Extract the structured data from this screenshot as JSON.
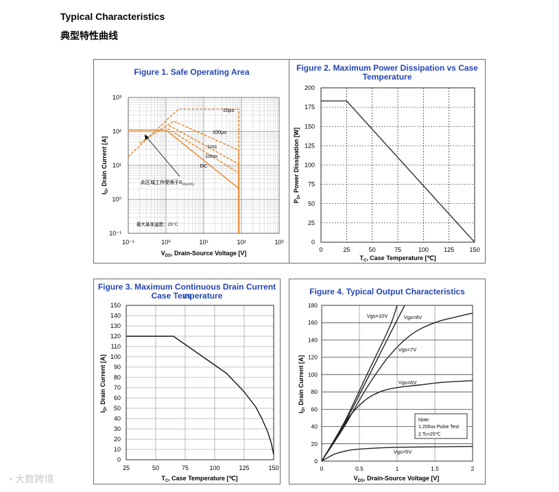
{
  "page": {
    "heading_en": "Typical Characteristics",
    "heading_cn": "典型特性曲线",
    "watermark": "大数跨境"
  },
  "chart_data": [
    {
      "type": "line",
      "title": "Figure 1. Safe Operating Area",
      "xlabel": "VDS, Drain-Source Voltage [V]",
      "ylabel": "ID, Drain Current [A]",
      "xscale": "log",
      "yscale": "log",
      "xlim": [
        0.1,
        1000
      ],
      "ylim": [
        0.1,
        1000
      ],
      "xticks": [
        "10⁻¹",
        "10⁰",
        "10¹",
        "10²",
        "10³"
      ],
      "yticks": [
        "10⁻¹",
        "10⁰",
        "10¹",
        "10²",
        "10³"
      ],
      "series": [
        {
          "name": "10µs",
          "style": "dashed",
          "x": [
            0.1,
            2.1,
            85,
            85
          ],
          "y": [
            18,
            450,
            450,
            0.1
          ]
        },
        {
          "name": "100µs",
          "style": "dashed",
          "x": [
            0.2,
            1.6,
            85,
            85
          ],
          "y": [
            45,
            200,
            28,
            0.1
          ]
        },
        {
          "name": "1ms",
          "style": "dashed",
          "x": [
            1.2,
            85,
            85
          ],
          "y": [
            150,
            11,
            0.1
          ]
        },
        {
          "name": "10ms",
          "style": "dashed",
          "x": [
            1.1,
            85,
            85
          ],
          "y": [
            120,
            6,
            0.1
          ]
        },
        {
          "name": "DC",
          "style": "solid",
          "x": [
            0.1,
            1.0,
            85,
            85
          ],
          "y": [
            110,
            110,
            2.1,
            0.1
          ]
        }
      ],
      "annotations": {
        "rds_note": "此区域工作受限于R",
        "rds_sub": "DS(ON)",
        "max_temp": "最大基准温度：25°C"
      }
    },
    {
      "type": "line",
      "title_lines": [
        "Figure 2. Maximum Power Dissipation vs Case",
        "Temperature"
      ],
      "xlabel": "TC, Case Temperature [℃]",
      "ylabel": "PD, Power Dissipation [W]",
      "xlim": [
        0,
        150
      ],
      "ylim": [
        0,
        200
      ],
      "xticks": [
        0,
        25,
        50,
        75,
        100,
        125,
        150
      ],
      "yticks": [
        0,
        25,
        50,
        75,
        100,
        125,
        150,
        175,
        200
      ],
      "series": [
        {
          "name": "PD",
          "x": [
            0,
            25,
            150
          ],
          "y": [
            183,
            183,
            0
          ]
        }
      ]
    },
    {
      "type": "line",
      "title_lines": [
        "Figure 3. Maximum Continuous Drain Current vs",
        "Case Temperature"
      ],
      "xlabel": "TC, Case Temperature [℃]",
      "ylabel": "ID, Drain Current [A]",
      "xlim": [
        25,
        150
      ],
      "ylim": [
        0,
        150
      ],
      "xticks": [
        25,
        50,
        75,
        100,
        125,
        150
      ],
      "yticks": [
        0,
        10,
        20,
        30,
        40,
        50,
        60,
        70,
        80,
        90,
        100,
        110,
        120,
        130,
        140,
        150
      ],
      "series": [
        {
          "name": "ID",
          "x": [
            25,
            65,
            80,
            95,
            110,
            125,
            135,
            140,
            145,
            148,
            150
          ],
          "y": [
            120,
            120,
            108,
            96,
            84,
            66,
            51,
            40,
            27,
            16,
            5
          ]
        }
      ]
    },
    {
      "type": "line",
      "title": "Figure 4. Typical Output Characteristics",
      "xlabel": "VDS, Drain-Source Voltage [V]",
      "ylabel": "ID, Drain Current [A]",
      "xlim": [
        0,
        2
      ],
      "ylim": [
        0,
        180
      ],
      "xticks": [
        "0",
        "0.5",
        "1",
        "1.5",
        "2"
      ],
      "yticks": [
        "0",
        "20",
        "40",
        "60",
        "80",
        "100",
        "120",
        "140",
        "160",
        "180"
      ],
      "series": [
        {
          "name": "Vgs=10V",
          "x": [
            0,
            0.3,
            0.6,
            0.9,
            1.0
          ],
          "y": [
            0,
            45,
            100,
            155,
            180
          ]
        },
        {
          "name": "Vgs=8V",
          "x": [
            0,
            0.3,
            0.6,
            0.9,
            1.1
          ],
          "y": [
            0,
            43,
            94,
            146,
            180
          ]
        },
        {
          "name": "Vgs=7V",
          "x": [
            0,
            0.3,
            0.6,
            0.9,
            1.2,
            1.5,
            1.75,
            2.0
          ],
          "y": [
            0,
            40,
            85,
            122,
            147,
            160,
            166,
            171
          ]
        },
        {
          "name": "Vgs=6V",
          "x": [
            0,
            0.2,
            0.4,
            0.6,
            0.8,
            1.0,
            1.3,
            1.6,
            2.0
          ],
          "y": [
            0,
            28,
            55,
            72,
            81,
            85,
            88,
            91,
            93
          ]
        },
        {
          "name": "Vgs=5V",
          "x": [
            0,
            0.1,
            0.2,
            0.4,
            0.7,
            1.0,
            1.5,
            2.0
          ],
          "y": [
            0,
            5,
            9,
            13,
            15,
            16,
            16.5,
            17
          ]
        }
      ],
      "note": {
        "title": "Note:",
        "line1": "1.200us Pulse Test",
        "line2": "2.Tc=25℃"
      }
    }
  ]
}
